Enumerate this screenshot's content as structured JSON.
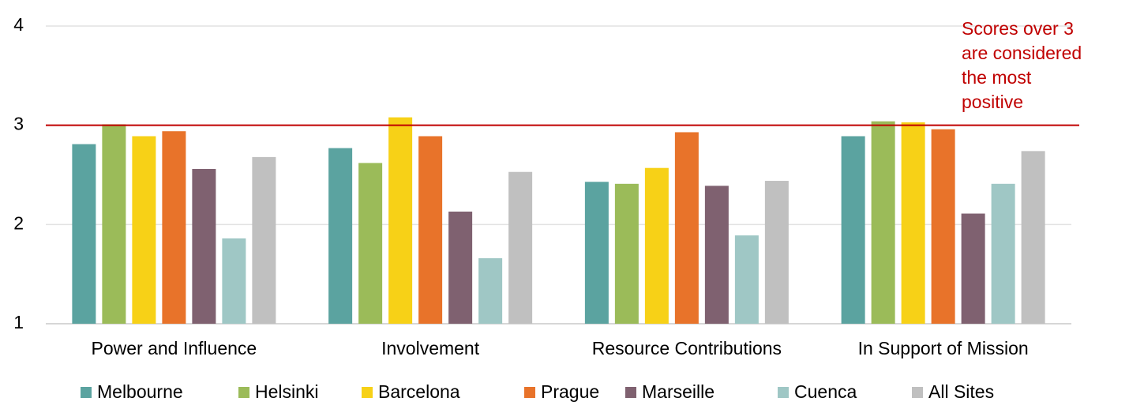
{
  "chart_data": {
    "type": "bar",
    "categories": [
      "Power and Influence",
      "Involvement",
      "Resource Contributions",
      "In Support of Mission"
    ],
    "series": [
      {
        "name": "Melbourne",
        "color": "#5ba3a0",
        "values": [
          2.81,
          2.77,
          2.43,
          2.89
        ]
      },
      {
        "name": "Helsinki",
        "color": "#9bbb59",
        "values": [
          3.01,
          2.62,
          2.41,
          3.04
        ]
      },
      {
        "name": "Barcelona",
        "color": "#f7d117",
        "values": [
          2.89,
          3.08,
          2.57,
          3.03
        ]
      },
      {
        "name": "Prague",
        "color": "#e8732a",
        "values": [
          2.94,
          2.89,
          2.93,
          2.96
        ]
      },
      {
        "name": "Marseille",
        "color": "#7f6170",
        "values": [
          2.56,
          2.13,
          2.39,
          2.11
        ]
      },
      {
        "name": "Cuenca",
        "color": "#9fc7c5",
        "values": [
          1.86,
          1.66,
          1.89,
          2.41
        ]
      },
      {
        "name": "All Sites",
        "color": "#c0c0c0",
        "values": [
          2.68,
          2.53,
          2.44,
          2.74
        ]
      }
    ],
    "ylim": [
      1,
      4
    ],
    "yticks": [
      1,
      2,
      3,
      4
    ],
    "grid": true,
    "reference_line": {
      "value": 3,
      "color": "#c00000"
    },
    "annotation": [
      "Scores over 3",
      "are considered",
      "the most",
      "positive"
    ],
    "legend": "bottom"
  }
}
